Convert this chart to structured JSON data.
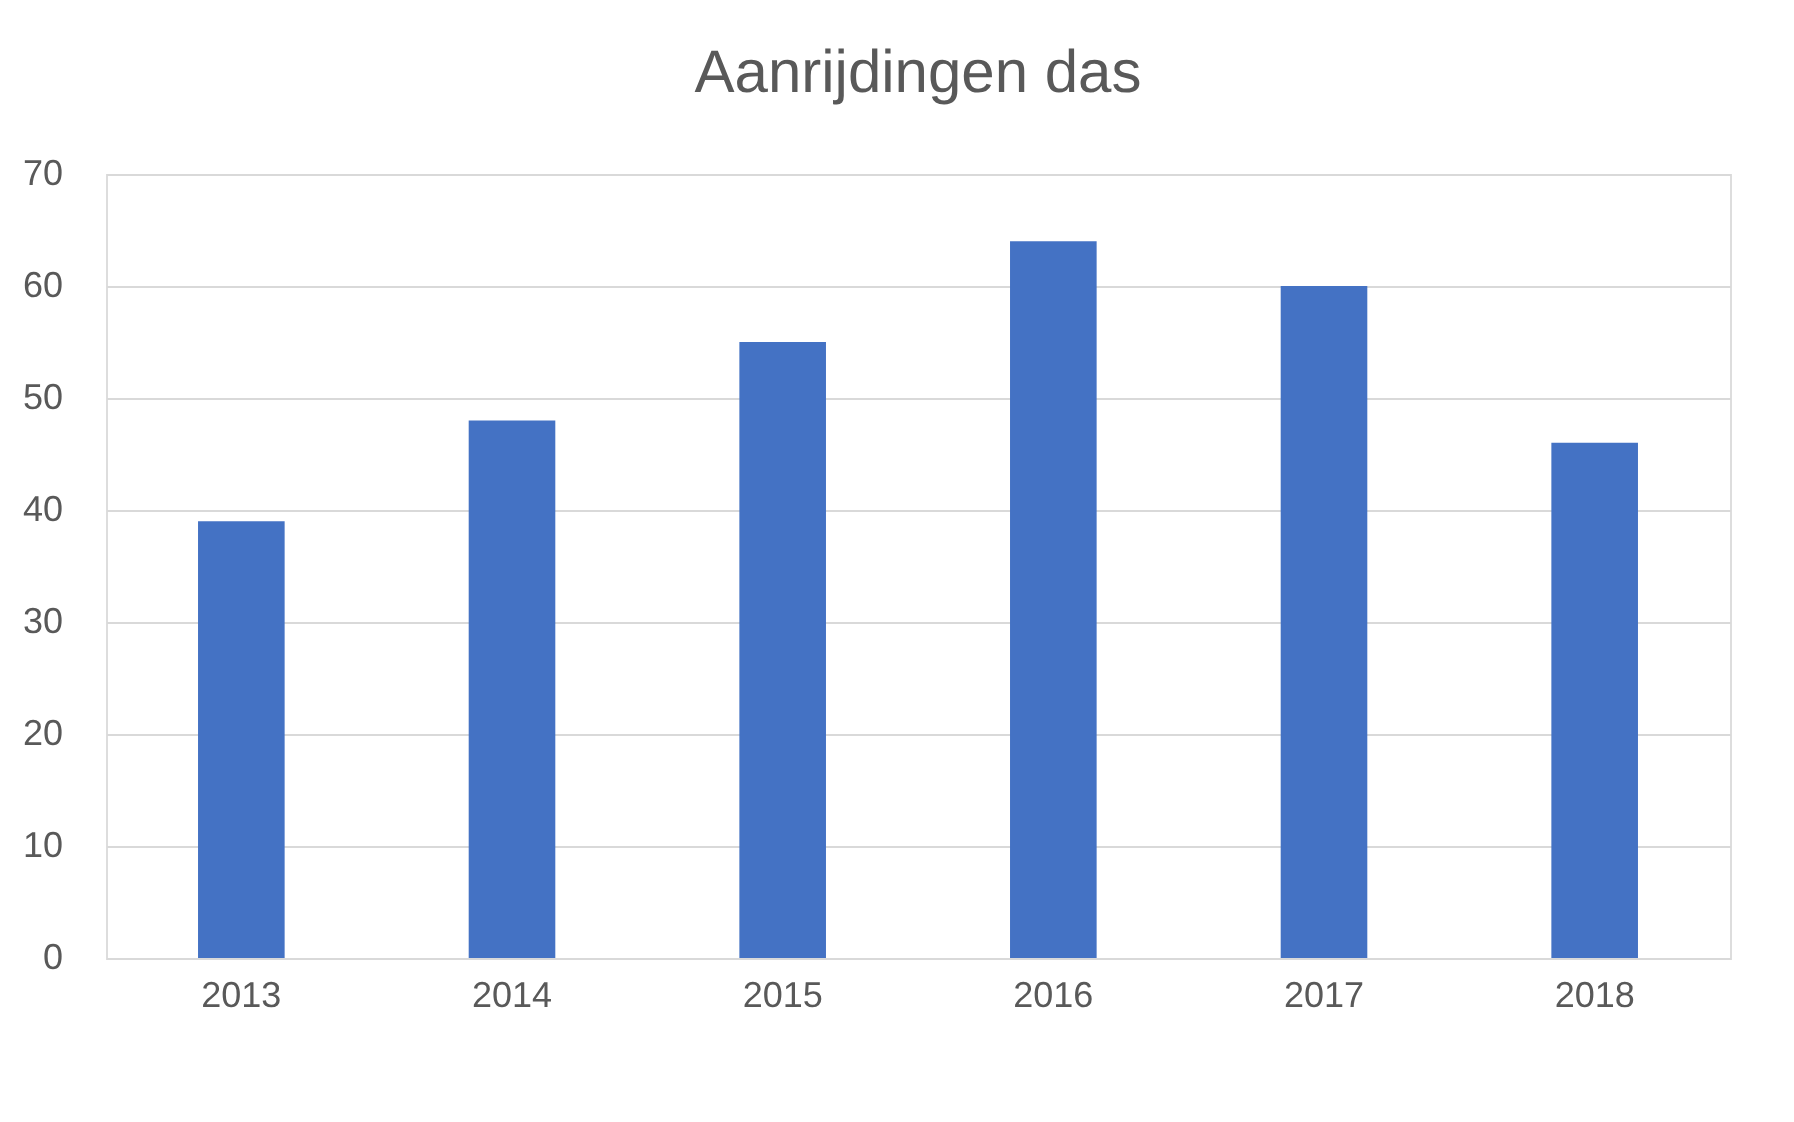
{
  "chart_data": {
    "type": "bar",
    "title": "Aanrijdingen das",
    "categories": [
      "2013",
      "2014",
      "2015",
      "2016",
      "2017",
      "2018"
    ],
    "values": [
      39,
      48,
      55,
      64,
      60,
      46
    ],
    "color": "#4472c4",
    "ylim": [
      0,
      70
    ],
    "yticks": [
      0,
      10,
      20,
      30,
      40,
      50,
      60,
      70
    ],
    "grid": "y"
  }
}
